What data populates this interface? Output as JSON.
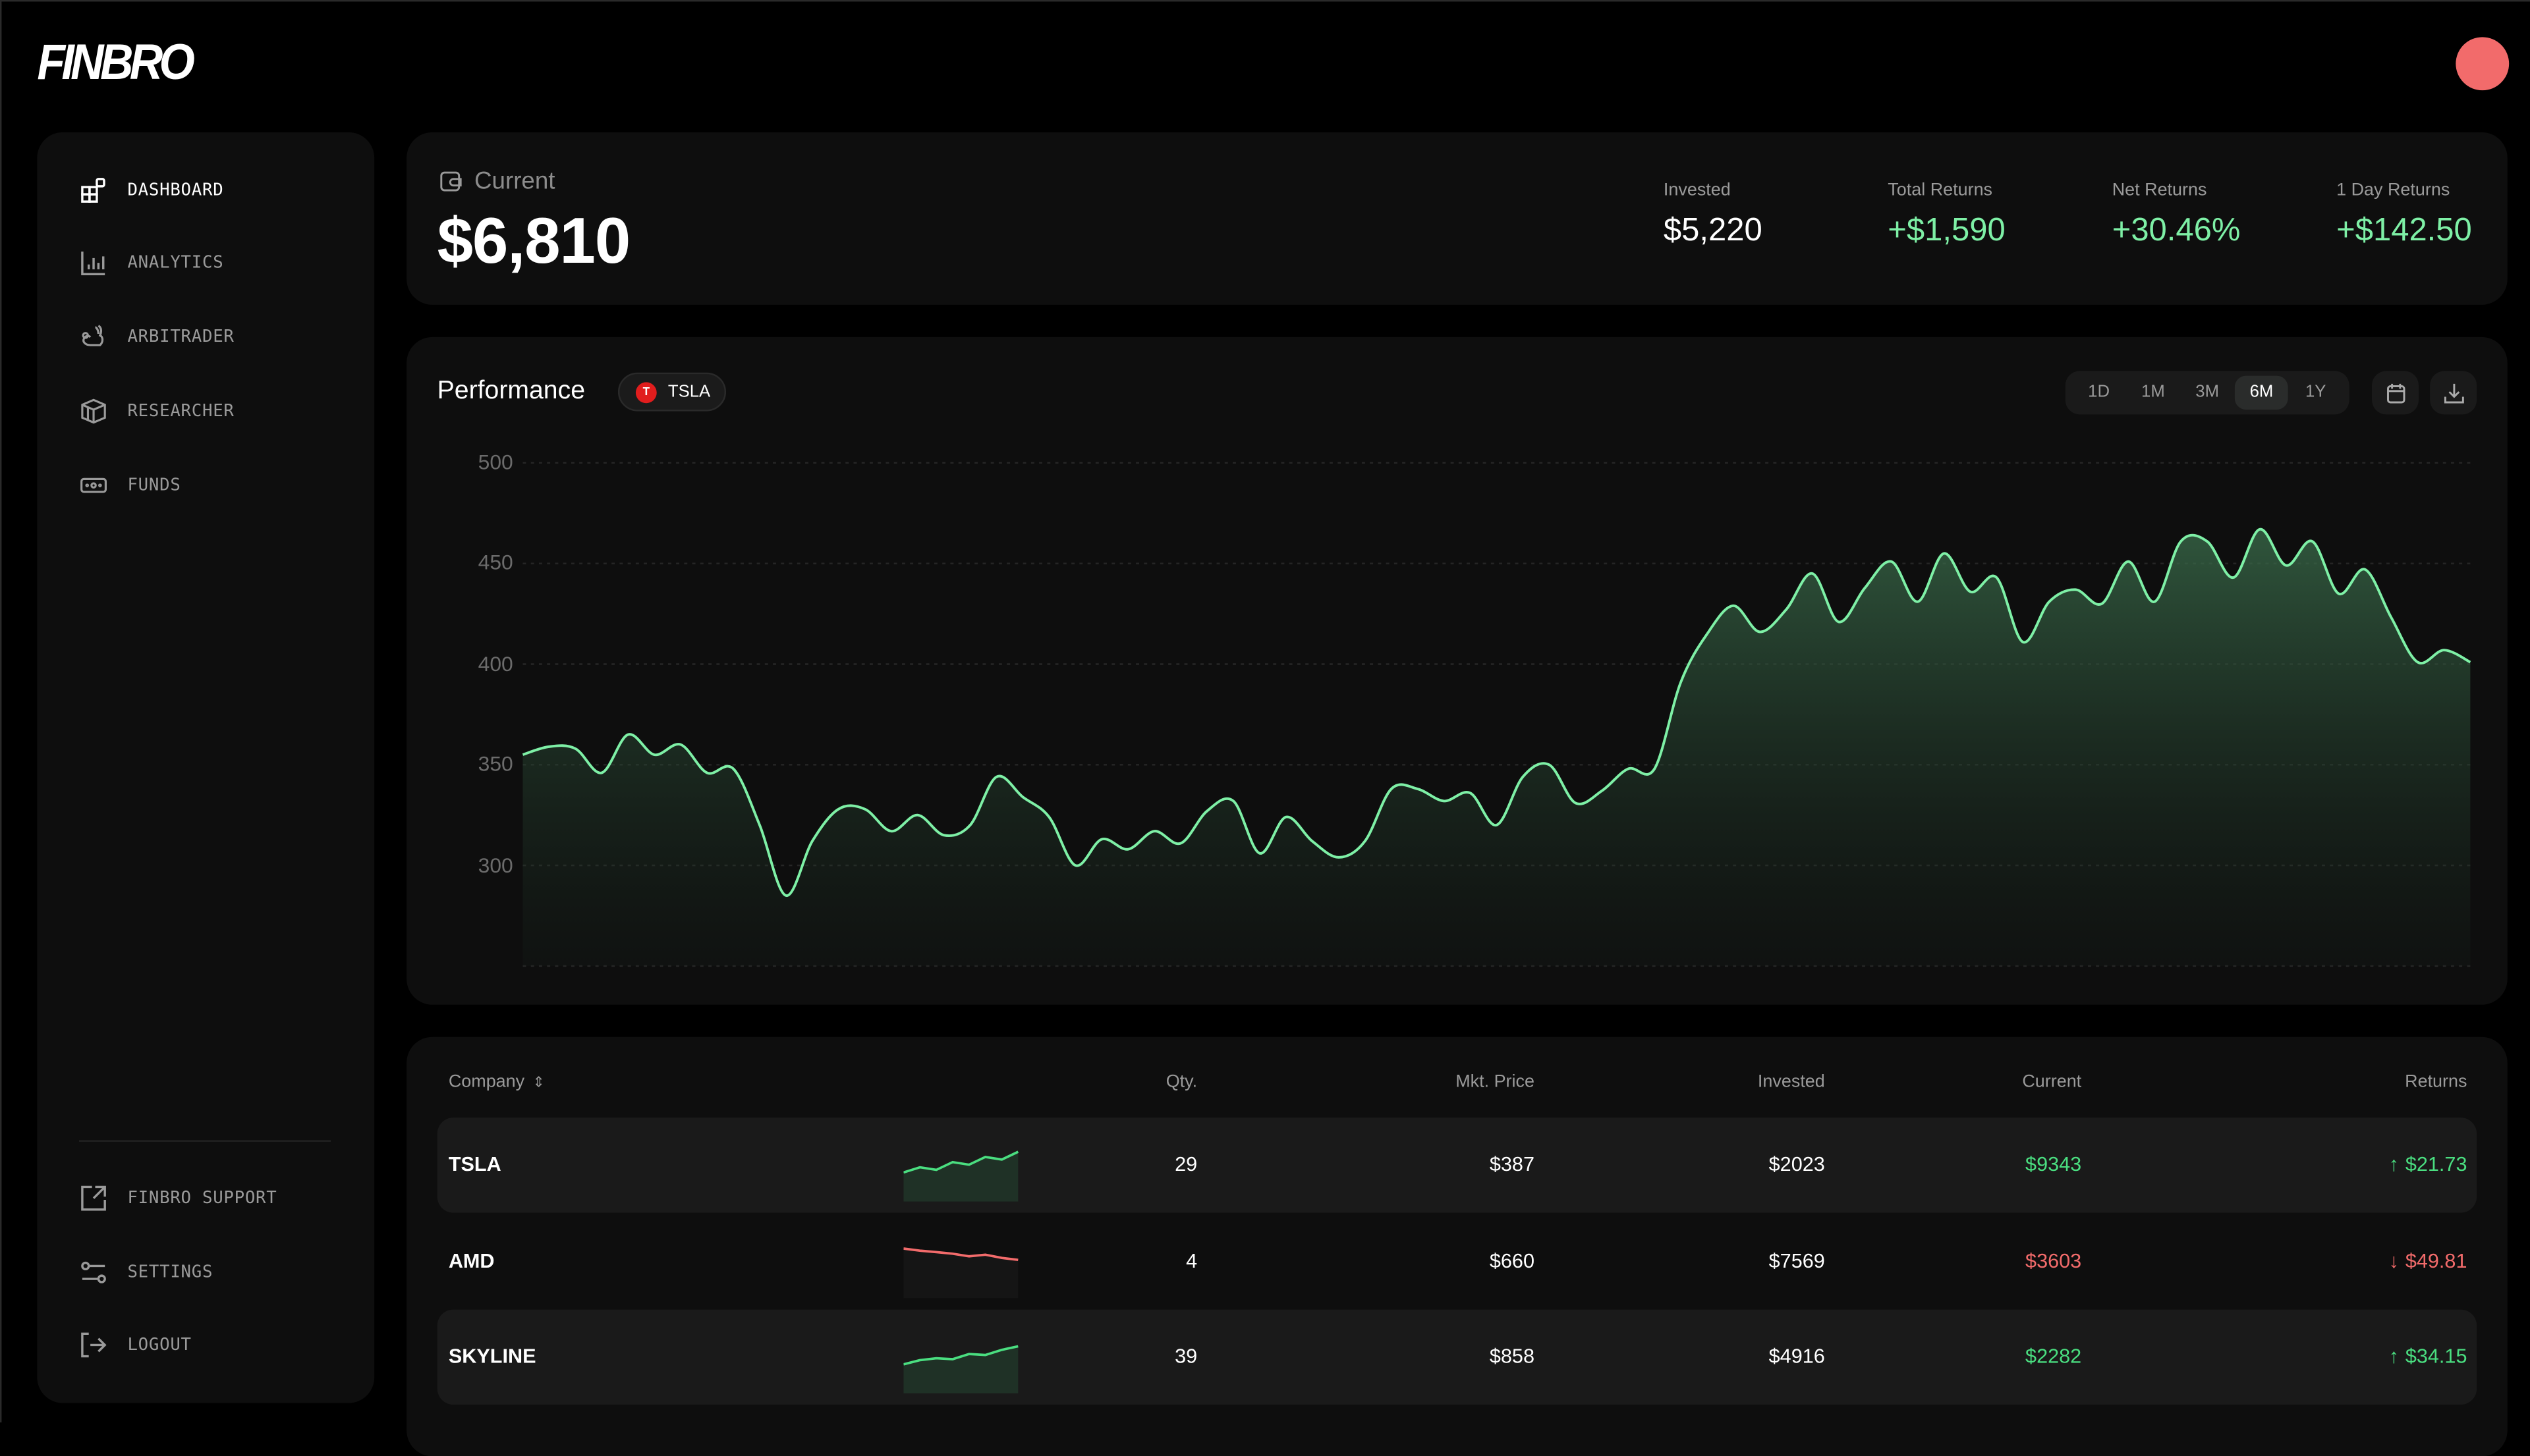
{
  "brand": {
    "logo": "FINBRO",
    "accent": "#7ef0a6",
    "negative": "#f26b6b"
  },
  "sidebar": {
    "items": [
      {
        "label": "DASHBOARD",
        "icon": "dashboard-icon",
        "active": true
      },
      {
        "label": "ANALYTICS",
        "icon": "bar-chart-icon"
      },
      {
        "label": "ARBITRADER",
        "icon": "rabbit-icon"
      },
      {
        "label": "RESEARCHER",
        "icon": "box-icon"
      },
      {
        "label": "FUNDS",
        "icon": "money-icon"
      }
    ],
    "bottom": [
      {
        "label": "FINBRO SUPPORT",
        "icon": "external-link-icon"
      },
      {
        "label": "SETTINGS",
        "icon": "sliders-icon"
      },
      {
        "label": "LOGOUT",
        "icon": "logout-icon"
      }
    ]
  },
  "summary": {
    "label": "Current",
    "value": "$6,810",
    "stats": [
      {
        "label": "Invested",
        "value": "$5,220"
      },
      {
        "label": "Total Returns",
        "value": "+$1,590"
      },
      {
        "label": "Net Returns",
        "value": "+30.46%"
      },
      {
        "label": "1 Day Returns",
        "value": "+$142.50"
      }
    ]
  },
  "performance": {
    "title": "Performance",
    "ticker": {
      "symbol": "TSLA",
      "logo_letter": "T"
    },
    "timeframes": [
      "1D",
      "1M",
      "3M",
      "6M",
      "1Y"
    ],
    "selected_timeframe": "6M"
  },
  "chart_data": {
    "type": "area",
    "title": "",
    "xlabel": "",
    "ylabel": "",
    "ylim": [
      250,
      500
    ],
    "yticks": [
      "500",
      "450",
      "400",
      "350",
      "300"
    ],
    "grid": true,
    "values": [
      355,
      359,
      358,
      346,
      365,
      355,
      360,
      346,
      348,
      320,
      285,
      312,
      328,
      328,
      317,
      325,
      315,
      320,
      344,
      334,
      324,
      300,
      313,
      308,
      317,
      311,
      327,
      332,
      306,
      324,
      312,
      304,
      312,
      338,
      338,
      332,
      336,
      320,
      344,
      350,
      331,
      337,
      348,
      348,
      391,
      415,
      429,
      416,
      427,
      445,
      421,
      438,
      451,
      431,
      455,
      436,
      443,
      411,
      431,
      437,
      430,
      451,
      431,
      461,
      461,
      443,
      467,
      449,
      461,
      435,
      447,
      423,
      401,
      407,
      401
    ]
  },
  "table": {
    "headers": {
      "company": "Company",
      "qty": "Qty.",
      "price": "Mkt. Price",
      "invested": "Invested",
      "current": "Current",
      "returns": "Returns"
    },
    "rows": [
      {
        "company": "TSLA",
        "qty": "29",
        "price": "$387",
        "invested": "$2023",
        "current": "$9343",
        "returns": "$21.73",
        "trend": "up",
        "spark": [
          3,
          4,
          3.5,
          5,
          4.5,
          6,
          5.5,
          7
        ]
      },
      {
        "company": "AMD",
        "qty": "4",
        "price": "$660",
        "invested": "$7569",
        "current": "$3603",
        "returns": "$49.81",
        "trend": "down",
        "spark": [
          7,
          6.6,
          6.3,
          6,
          5.5,
          5.8,
          5.2,
          4.8
        ]
      },
      {
        "company": "SKYLINE",
        "qty": "39",
        "price": "$858",
        "invested": "$4916",
        "current": "$2282",
        "returns": "$34.15",
        "trend": "up",
        "spark": [
          3,
          3.8,
          4.2,
          4,
          5,
          4.8,
          5.8,
          6.5
        ]
      }
    ]
  }
}
